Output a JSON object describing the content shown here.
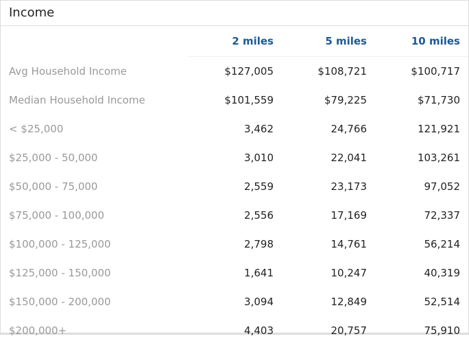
{
  "header": {
    "title": "Income"
  },
  "table": {
    "columns": [
      "2 miles",
      "5 miles",
      "10 miles"
    ],
    "rows": [
      [
        "Avg Household Income",
        "$127,005",
        "$108,721",
        "$100,717"
      ],
      [
        "Median Household Income",
        "$101,559",
        "$79,225",
        "$71,730"
      ],
      [
        "< $25,000",
        "3,462",
        "24,766",
        "121,921"
      ],
      [
        "$25,000 - 50,000",
        "3,010",
        "22,041",
        "103,261"
      ],
      [
        "$50,000 - 75,000",
        "2,559",
        "23,173",
        "97,052"
      ],
      [
        "$75,000 - 100,000",
        "2,556",
        "17,169",
        "72,337"
      ],
      [
        "$100,000 - 125,000",
        "2,798",
        "14,761",
        "56,214"
      ],
      [
        "$125,000 - 150,000",
        "1,641",
        "10,247",
        "40,319"
      ],
      [
        "$150,000 - 200,000",
        "3,094",
        "12,849",
        "52,514"
      ],
      [
        "$200,000+",
        "4,403",
        "20,757",
        "75,910"
      ]
    ]
  }
}
